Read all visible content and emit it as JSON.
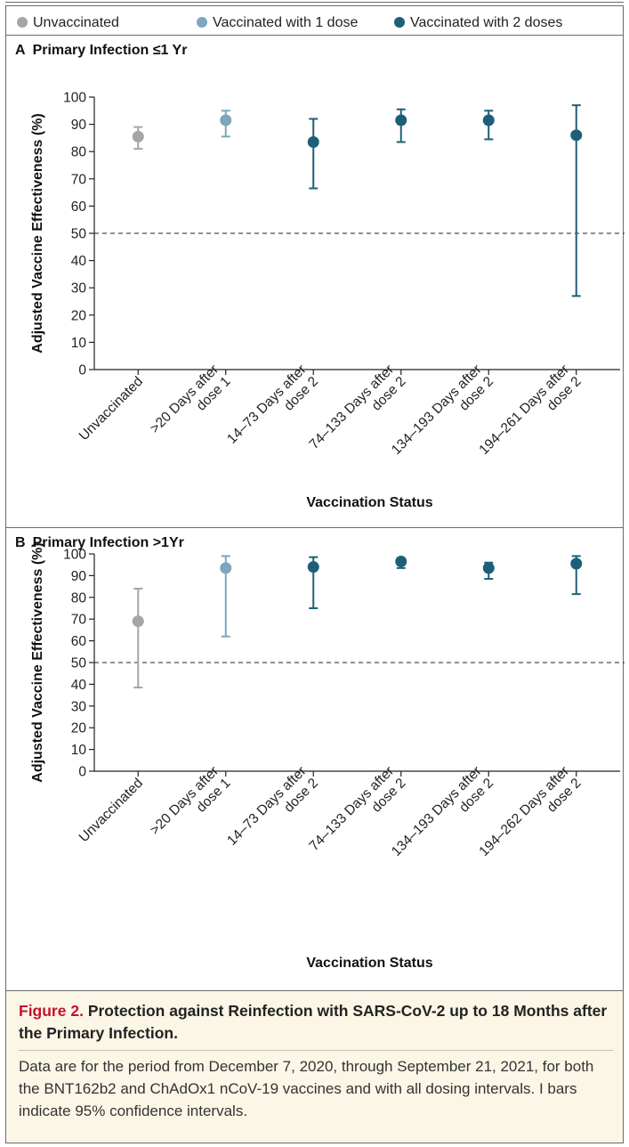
{
  "legend": [
    {
      "label": "Unvaccinated",
      "color": "#a5a5a5"
    },
    {
      "label": "Vaccinated with 1 dose",
      "color": "#7ba7bf"
    },
    {
      "label": "Vaccinated with 2 doses",
      "color": "#1d5f78"
    }
  ],
  "caption": {
    "figure_label": "Figure 2.",
    "title": "Protection against Reinfection with SARS-CoV-2 up to 18 Months after the Primary Infection.",
    "text": "Data are for the period from December 7, 2020, through September 21, 2021, for both the BNT162b2 and ChAdOx1 nCoV-19 vaccines and with all dosing intervals. I bars indicate 95% confidence intervals."
  },
  "chart_data": [
    {
      "type": "scatter",
      "panel_letter": "A",
      "title": "Primary Infection ≤1 Yr",
      "xlabel": "Vaccination Status",
      "ylabel": "Adjusted Vaccine Effectiveness (%)",
      "ylim": [
        0,
        100
      ],
      "yticks": [
        0,
        10,
        20,
        30,
        40,
        50,
        60,
        70,
        80,
        90,
        100
      ],
      "reference_line": 50,
      "categories": [
        [
          "Unvaccinated"
        ],
        [
          ">20 Days after",
          "dose 1"
        ],
        [
          "14–73 Days after",
          "dose 2"
        ],
        [
          "74–133 Days after",
          "dose 2"
        ],
        [
          "134–193 Days after",
          "dose 2"
        ],
        [
          "194–261 Days after",
          "dose 2"
        ]
      ],
      "groups": [
        "Unvaccinated",
        "Vaccinated with 1 dose",
        "Vaccinated with 2 doses",
        "Vaccinated with 2 doses",
        "Vaccinated with 2 doses",
        "Vaccinated with 2 doses"
      ],
      "estimates": [
        85.5,
        91.5,
        83.5,
        91.5,
        91.5,
        86
      ],
      "ci_low": [
        81,
        85.5,
        66.5,
        83.5,
        84.5,
        27
      ],
      "ci_high": [
        89,
        95,
        92,
        95.5,
        95,
        97
      ]
    },
    {
      "type": "scatter",
      "panel_letter": "B",
      "title": "Primary Infection >1Yr",
      "xlabel": "Vaccination Status",
      "ylabel": "Adjusted Vaccine Effectiveness (%)",
      "ylim": [
        0,
        100
      ],
      "yticks": [
        0,
        10,
        20,
        30,
        40,
        50,
        60,
        70,
        80,
        90,
        100
      ],
      "reference_line": 50,
      "categories": [
        [
          "Unvaccinated"
        ],
        [
          ">20 Days after",
          "dose 1"
        ],
        [
          "14–73 Days after",
          "dose 2"
        ],
        [
          "74–133 Days after",
          "dose 2"
        ],
        [
          "134–193 Days after",
          "dose 2"
        ],
        [
          "194–262 Days after",
          "dose 2"
        ]
      ],
      "groups": [
        "Unvaccinated",
        "Vaccinated with 1 dose",
        "Vaccinated with 2 doses",
        "Vaccinated with 2 doses",
        "Vaccinated with 2 doses",
        "Vaccinated with 2 doses"
      ],
      "estimates": [
        69,
        93.5,
        94,
        96.5,
        93.5,
        95.5
      ],
      "ci_low": [
        38.5,
        62,
        75,
        93.5,
        88.5,
        81.5
      ],
      "ci_high": [
        84,
        99,
        98.5,
        98,
        96,
        99
      ]
    }
  ]
}
